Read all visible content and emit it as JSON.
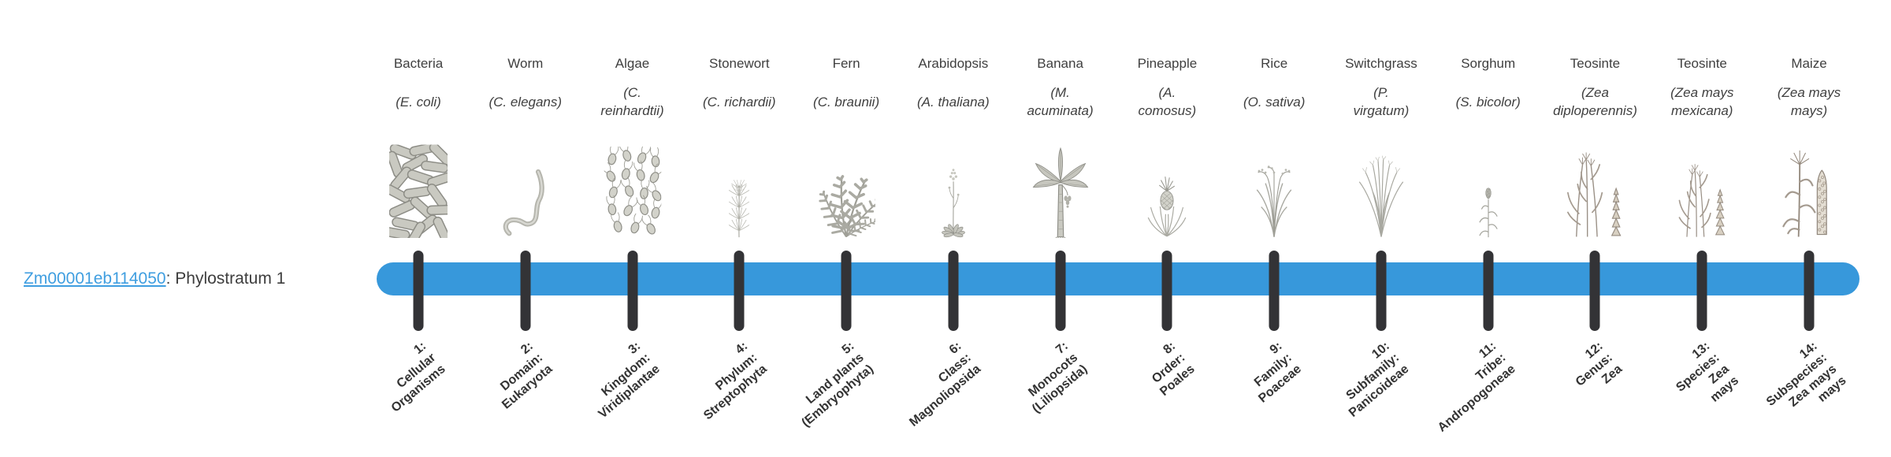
{
  "gene": {
    "id": "Zm00001eb114050",
    "suffix": ": Phylostratum 1"
  },
  "colors": {
    "bar": "#3798db",
    "tick": "#333336",
    "link": "#3f9ee0",
    "text": "#3f3f3f"
  },
  "columns": [
    {
      "common": "Bacteria",
      "species": "(E. coli)",
      "icon": "bacteria-icon",
      "tick": "1:\nCellular\nOrganisms"
    },
    {
      "common": "Worm",
      "species": "(C. elegans)",
      "icon": "worm-icon",
      "tick": "2:\nDomain:\nEukaryota"
    },
    {
      "common": "Algae",
      "species": "(C.\nreinhardtii)",
      "icon": "algae-icon",
      "tick": "3:\nKingdom:\nViridiplantae"
    },
    {
      "common": "Stonewort",
      "species": "(C. richardii)",
      "icon": "stonewort-icon",
      "tick": "4:\nPhylum:\nStreptophyta"
    },
    {
      "common": "Fern",
      "species": "(C. braunii)",
      "icon": "fern-icon",
      "tick": "5:\nLand plants\n(Embryophyta)"
    },
    {
      "common": "Arabidopsis",
      "species": "(A. thaliana)",
      "icon": "arabidopsis-icon",
      "tick": "6:\nClass:\nMagnoliopsida"
    },
    {
      "common": "Banana",
      "species": "(M.\nacuminata)",
      "icon": "banana-icon",
      "tick": "7:\nMonocots\n(Liliopsida)"
    },
    {
      "common": "Pineapple",
      "species": "(A.\ncomosus)",
      "icon": "pineapple-icon",
      "tick": "8:\nOrder:\nPoales"
    },
    {
      "common": "Rice",
      "species": "(O. sativa)",
      "icon": "rice-icon",
      "tick": "9:\nFamily:\nPoaceae"
    },
    {
      "common": "Switchgrass",
      "species": "(P.\nvirgatum)",
      "icon": "switchgrass-icon",
      "tick": "10:\nSubfamily:\nPanicoideae"
    },
    {
      "common": "Sorghum",
      "species": "(S. bicolor)",
      "icon": "sorghum-icon",
      "tick": "11:\nTribe:\nAndropogoneae"
    },
    {
      "common": "Teosinte",
      "species": "(Zea\ndiploperennis)",
      "icon": "teosinte-diploperennis-icon",
      "tick": "12:\nGenus:\nZea"
    },
    {
      "common": "Teosinte",
      "species": "(Zea mays\nmexicana)",
      "icon": "teosinte-mexicana-icon",
      "tick": "13:\nSpecies:\nZea\nmays"
    },
    {
      "common": "Maize",
      "species": "(Zea mays\nmays)",
      "icon": "maize-icon",
      "tick": "14:\nSubspecies:\nZea mays\nmays"
    }
  ]
}
